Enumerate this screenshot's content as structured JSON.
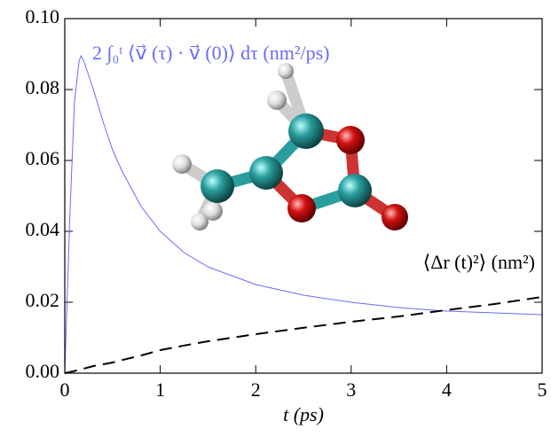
{
  "chart_data": {
    "type": "line",
    "x_label": "t  (ps)",
    "x": [
      0,
      0.05,
      0.1,
      0.15,
      0.17,
      0.2,
      0.3,
      0.4,
      0.5,
      0.6,
      0.8,
      1,
      1.25,
      1.5,
      2,
      2.5,
      3,
      3.5,
      4,
      4.5,
      5
    ],
    "series": [
      {
        "name": "2 ∫₀ᵗ ⟨v⃗ (τ) · v⃗ (0)⟩ dτ  (nm²/ps)",
        "color": "#6a6aff",
        "dashed": false,
        "values": [
          0,
          0.042,
          0.076,
          0.088,
          0.0895,
          0.088,
          0.08,
          0.071,
          0.063,
          0.057,
          0.047,
          0.04,
          0.034,
          0.03,
          0.025,
          0.022,
          0.02,
          0.0185,
          0.0175,
          0.017,
          0.0165
        ]
      },
      {
        "name": "⟨Δr (t)²⟩  (nm²)",
        "color": "#000000",
        "dashed": true,
        "values": [
          0,
          0.0003,
          0.0006,
          0.001,
          0.0011,
          0.0013,
          0.002,
          0.0025,
          0.003,
          0.0037,
          0.005,
          0.0065,
          0.0078,
          0.009,
          0.011,
          0.0128,
          0.0145,
          0.016,
          0.0178,
          0.0195,
          0.0215
        ]
      }
    ],
    "xlim": [
      0,
      5
    ],
    "xticks": [
      0,
      1,
      2,
      3,
      4,
      5
    ],
    "ylim": [
      0,
      0.1
    ],
    "yticks": [
      {
        "value": 0,
        "label": "0.00"
      },
      {
        "value": 0.02,
        "label": "0.02"
      },
      {
        "value": 0.04,
        "label": "0.04"
      },
      {
        "value": 0.06,
        "label": "0.06"
      },
      {
        "value": 0.08,
        "label": "0.08"
      },
      {
        "value": 0.1,
        "label": "0.10"
      }
    ]
  }
}
